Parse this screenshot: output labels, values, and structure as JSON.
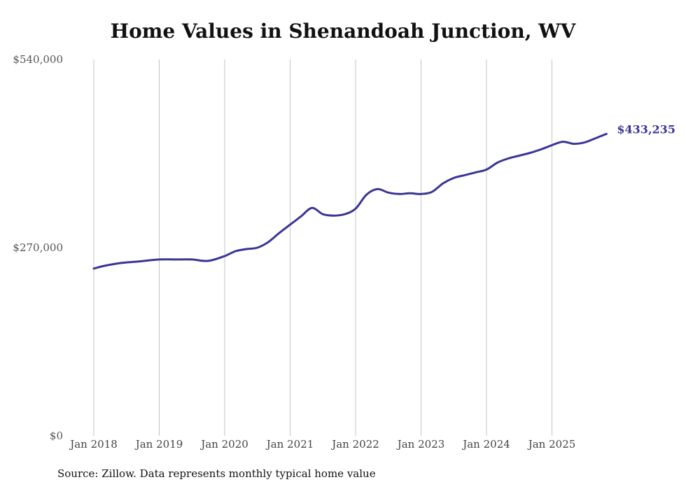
{
  "chart_data": {
    "type": "line",
    "title": "Home Values in Shenandoah Junction, WV",
    "xlabel": "",
    "ylabel": "",
    "ylim": [
      0,
      540000
    ],
    "xlim": [
      "2018-01",
      "2025-12"
    ],
    "y_ticks": [
      "$0",
      "$270,000",
      "$540,000"
    ],
    "x_ticks": [
      "Jan 2018",
      "Jan 2019",
      "Jan 2020",
      "Jan 2021",
      "Jan 2022",
      "Jan 2023",
      "Jan 2024",
      "Jan 2025"
    ],
    "grid": "vertical",
    "end_label": "$433,235",
    "series": [
      {
        "color": "#3a3596",
        "points": [
          [
            "2018-01",
            240000
          ],
          [
            "2018-03",
            244000
          ],
          [
            "2018-06",
            248000
          ],
          [
            "2018-09",
            250000
          ],
          [
            "2019-01",
            253000
          ],
          [
            "2019-04",
            253000
          ],
          [
            "2019-07",
            253000
          ],
          [
            "2019-10",
            251000
          ],
          [
            "2020-01",
            258000
          ],
          [
            "2020-03",
            265000
          ],
          [
            "2020-05",
            268000
          ],
          [
            "2020-07",
            270000
          ],
          [
            "2020-09",
            278000
          ],
          [
            "2020-11",
            291000
          ],
          [
            "2021-01",
            303000
          ],
          [
            "2021-03",
            315000
          ],
          [
            "2021-05",
            327000
          ],
          [
            "2021-07",
            318000
          ],
          [
            "2021-09",
            316000
          ],
          [
            "2021-11",
            318000
          ],
          [
            "2022-01",
            326000
          ],
          [
            "2022-03",
            346000
          ],
          [
            "2022-05",
            354000
          ],
          [
            "2022-07",
            349000
          ],
          [
            "2022-09",
            347000
          ],
          [
            "2022-11",
            348000
          ],
          [
            "2023-01",
            347000
          ],
          [
            "2023-03",
            350000
          ],
          [
            "2023-05",
            362000
          ],
          [
            "2023-07",
            370000
          ],
          [
            "2023-09",
            374000
          ],
          [
            "2023-11",
            378000
          ],
          [
            "2024-01",
            382000
          ],
          [
            "2024-03",
            392000
          ],
          [
            "2024-05",
            398000
          ],
          [
            "2024-07",
            402000
          ],
          [
            "2024-09",
            406000
          ],
          [
            "2024-11",
            411000
          ],
          [
            "2025-01",
            417000
          ],
          [
            "2025-03",
            422000
          ],
          [
            "2025-05",
            419000
          ],
          [
            "2025-07",
            421000
          ],
          [
            "2025-09",
            427000
          ],
          [
            "2025-11",
            433235
          ]
        ]
      }
    ]
  },
  "source_note": "Source: Zillow. Data represents monthly typical home value"
}
